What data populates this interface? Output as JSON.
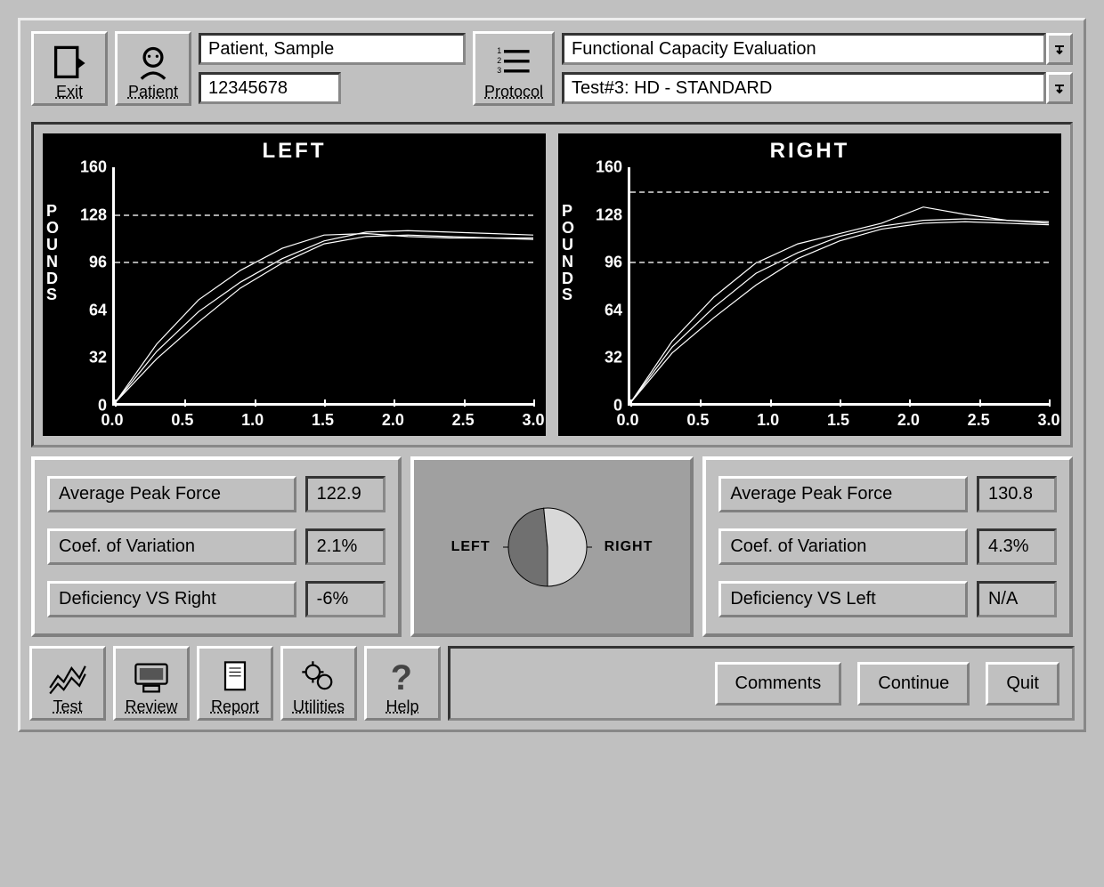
{
  "toolbar_top": {
    "exit": "Exit",
    "patient": "Patient",
    "protocol": "Protocol",
    "patient_name": "Patient, Sample",
    "patient_id": "12345678",
    "protocol_title": "Functional Capacity Evaluation",
    "test_name": "Test#3: HD - STANDARD"
  },
  "charts": {
    "left": {
      "title": "LEFT",
      "ylabel": "POUNDS",
      "ylim": [
        0,
        160
      ],
      "yticks": [
        0,
        32,
        64,
        96,
        128,
        160
      ],
      "xlim": [
        0.0,
        3.0
      ],
      "xticks": [
        "0.0",
        "0.5",
        "1.0",
        "1.5",
        "2.0",
        "2.5",
        "3.0"
      ],
      "reference_lines": [
        96,
        128
      ],
      "background_color": "#000000",
      "axis_color": "#ffffff",
      "grid_color": "#aaaaaa",
      "line_color": "#ffffff",
      "series": [
        {
          "type": "line",
          "points": [
            [
              0,
              0
            ],
            [
              0.3,
              40
            ],
            [
              0.6,
              70
            ],
            [
              0.9,
              90
            ],
            [
              1.2,
              105
            ],
            [
              1.5,
              114
            ],
            [
              1.8,
              115
            ],
            [
              2.1,
              113
            ],
            [
              2.4,
              112
            ],
            [
              2.7,
              112
            ],
            [
              3.0,
              112
            ]
          ]
        },
        {
          "type": "line",
          "points": [
            [
              0,
              0
            ],
            [
              0.3,
              35
            ],
            [
              0.6,
              62
            ],
            [
              0.9,
              82
            ],
            [
              1.2,
              98
            ],
            [
              1.5,
              110
            ],
            [
              1.8,
              116
            ],
            [
              2.1,
              117
            ],
            [
              2.4,
              116
            ],
            [
              2.7,
              115
            ],
            [
              3.0,
              114
            ]
          ]
        },
        {
          "type": "line",
          "points": [
            [
              0,
              0
            ],
            [
              0.3,
              30
            ],
            [
              0.6,
              55
            ],
            [
              0.9,
              78
            ],
            [
              1.2,
              95
            ],
            [
              1.5,
              108
            ],
            [
              1.8,
              113
            ],
            [
              2.1,
              114
            ],
            [
              2.4,
              113
            ],
            [
              2.7,
              112
            ],
            [
              3.0,
              111
            ]
          ]
        }
      ]
    },
    "right": {
      "title": "RIGHT",
      "ylabel": "POUNDS",
      "ylim": [
        0,
        160
      ],
      "yticks": [
        0,
        32,
        64,
        96,
        128,
        160
      ],
      "xlim": [
        0.0,
        3.0
      ],
      "xticks": [
        "0.0",
        "0.5",
        "1.0",
        "1.5",
        "2.0",
        "2.5",
        "3.0"
      ],
      "reference_lines": [
        96,
        144
      ],
      "background_color": "#000000",
      "axis_color": "#ffffff",
      "grid_color": "#aaaaaa",
      "line_color": "#ffffff",
      "series": [
        {
          "type": "line",
          "points": [
            [
              0,
              0
            ],
            [
              0.3,
              42
            ],
            [
              0.6,
              72
            ],
            [
              0.9,
              95
            ],
            [
              1.2,
              108
            ],
            [
              1.5,
              115
            ],
            [
              1.8,
              122
            ],
            [
              2.1,
              133
            ],
            [
              2.4,
              128
            ],
            [
              2.7,
              124
            ],
            [
              3.0,
              122
            ]
          ]
        },
        {
          "type": "line",
          "points": [
            [
              0,
              0
            ],
            [
              0.3,
              38
            ],
            [
              0.6,
              65
            ],
            [
              0.9,
              88
            ],
            [
              1.2,
              102
            ],
            [
              1.5,
              113
            ],
            [
              1.8,
              120
            ],
            [
              2.1,
              124
            ],
            [
              2.4,
              125
            ],
            [
              2.7,
              124
            ],
            [
              3.0,
              123
            ]
          ]
        },
        {
          "type": "line",
          "points": [
            [
              0,
              0
            ],
            [
              0.3,
              34
            ],
            [
              0.6,
              58
            ],
            [
              0.9,
              80
            ],
            [
              1.2,
              98
            ],
            [
              1.5,
              110
            ],
            [
              1.8,
              118
            ],
            [
              2.1,
              122
            ],
            [
              2.4,
              123
            ],
            [
              2.7,
              122
            ],
            [
              3.0,
              121
            ]
          ]
        }
      ]
    }
  },
  "stats": {
    "left": {
      "rows": [
        {
          "label": "Average Peak Force",
          "value": "122.9"
        },
        {
          "label": "Coef. of Variation",
          "value": "2.1%"
        },
        {
          "label": "Deficiency VS Right",
          "value": "-6%"
        }
      ]
    },
    "right": {
      "rows": [
        {
          "label": "Average Peak Force",
          "value": "130.8"
        },
        {
          "label": "Coef. of Variation",
          "value": "4.3%"
        },
        {
          "label": "Deficiency VS Left",
          "value": "N/A"
        }
      ]
    },
    "pie": {
      "left_label": "LEFT",
      "right_label": "RIGHT",
      "left_value": 122.9,
      "right_value": 130.8,
      "left_color": "#707070",
      "right_color": "#d8d8d8"
    }
  },
  "toolbar_bottom": {
    "test": "Test",
    "review": "Review",
    "report": "Report",
    "utilities": "Utilities",
    "help": "Help",
    "comments": "Comments",
    "continue": "Continue",
    "quit": "Quit"
  }
}
